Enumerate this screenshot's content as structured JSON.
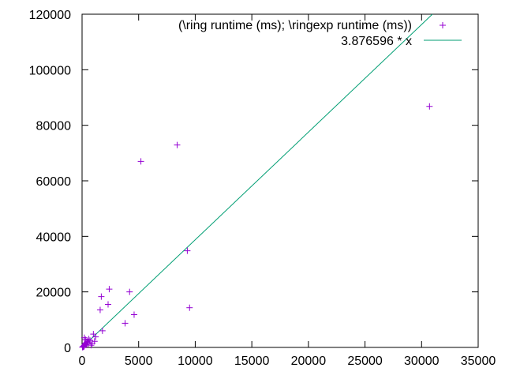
{
  "chart_data": {
    "type": "scatter",
    "title": "",
    "xlabel": "",
    "ylabel": "",
    "xlim": [
      0,
      35000
    ],
    "ylim": [
      0,
      120000
    ],
    "xticks": [
      0,
      5000,
      10000,
      15000,
      20000,
      25000,
      30000,
      35000
    ],
    "yticks": [
      0,
      20000,
      40000,
      60000,
      80000,
      100000,
      120000
    ],
    "grid": false,
    "legend_position": "top-right",
    "colors": {
      "points": "#9400d3",
      "fit_line": "#009e73",
      "axis": "#000000"
    },
    "series": [
      {
        "name": "(\\ring runtime (ms); \\ringexp runtime (ms))",
        "kind": "points",
        "marker": "+",
        "points": [
          [
            30,
            80
          ],
          [
            60,
            150
          ],
          [
            90,
            300
          ],
          [
            120,
            200
          ],
          [
            150,
            500
          ],
          [
            180,
            350
          ],
          [
            200,
            700
          ],
          [
            250,
            1000
          ],
          [
            300,
            1500
          ],
          [
            350,
            900
          ],
          [
            400,
            1800
          ],
          [
            500,
            2000
          ],
          [
            550,
            1200
          ],
          [
            600,
            3000
          ],
          [
            700,
            2500
          ],
          [
            800,
            800
          ],
          [
            200,
            3500
          ],
          [
            300,
            2800
          ],
          [
            450,
            2200
          ],
          [
            900,
            1500
          ],
          [
            1000,
            4800
          ],
          [
            1100,
            2200
          ],
          [
            1200,
            3800
          ],
          [
            1600,
            13500
          ],
          [
            1700,
            18300
          ],
          [
            1800,
            6000
          ],
          [
            2300,
            15500
          ],
          [
            2400,
            21000
          ],
          [
            3800,
            8700
          ],
          [
            4200,
            20000
          ],
          [
            4600,
            11800
          ],
          [
            5200,
            67000
          ],
          [
            8400,
            72900
          ],
          [
            9300,
            34800
          ],
          [
            9500,
            14300
          ],
          [
            30700,
            86800
          ]
        ]
      },
      {
        "name": "3.876596 * x",
        "kind": "line",
        "slope": 3.876596
      }
    ]
  }
}
